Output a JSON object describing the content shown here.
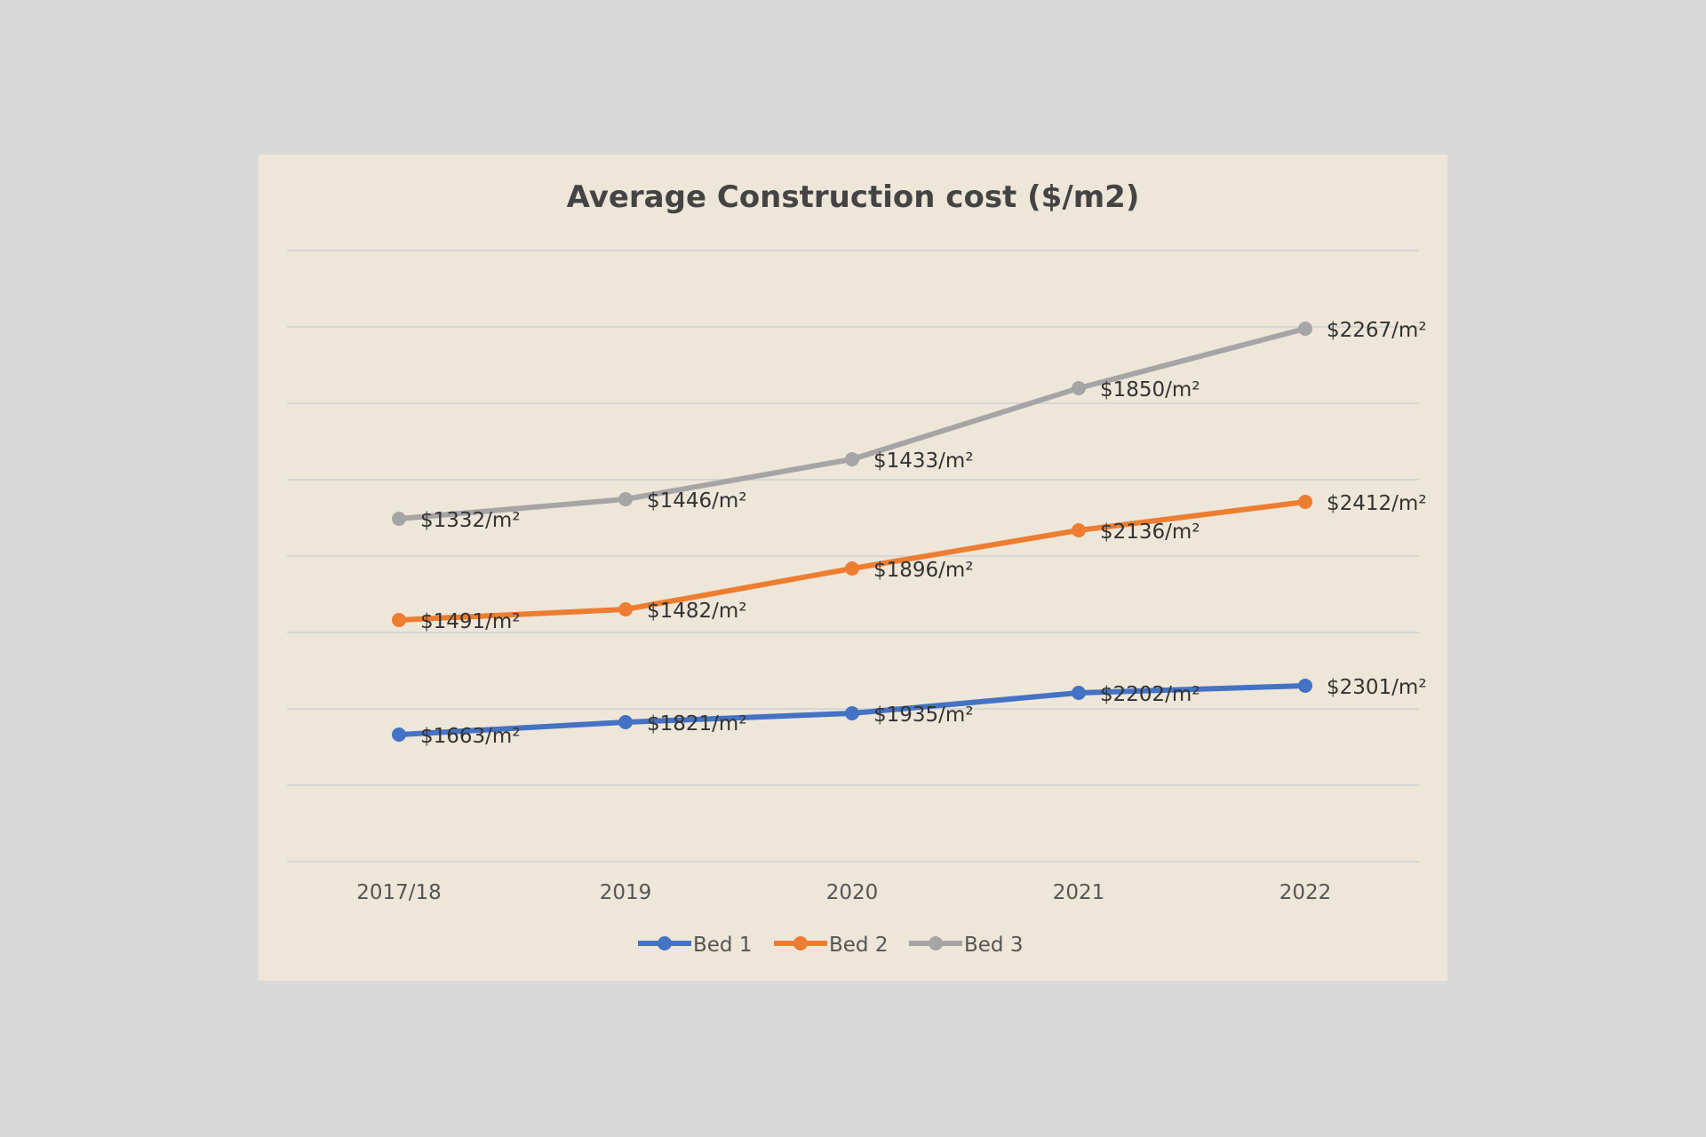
{
  "chart_data": {
    "type": "line",
    "title": "Average Construction cost ($/m2)",
    "categories": [
      "2017/18",
      "2019",
      "2020",
      "2021",
      "2022"
    ],
    "series": [
      {
        "name": "Bed 1",
        "color": "#4472c4",
        "values": [
          1663,
          1821,
          1935,
          2202,
          2301
        ],
        "labels": [
          "$1663/m²",
          "$1821/m²",
          "$1935/m²",
          "$2202/m²",
          "$2301/m²"
        ]
      },
      {
        "name": "Bed 2",
        "color": "#ed7d31",
        "values": [
          1491,
          1482,
          1896,
          2136,
          2412
        ],
        "labels": [
          "$1491/m²",
          "$1482/m²",
          "$1896/m²",
          "$2136/m²",
          "$2412/m²"
        ]
      },
      {
        "name": "Bed 3",
        "color": "#a5a5a5",
        "values": [
          1332,
          1446,
          1433,
          1850,
          2267
        ],
        "labels": [
          "$1332/m²",
          "$1446/m²",
          "$1433/m²",
          "$1850/m²",
          "$2267/m²"
        ]
      }
    ],
    "legend_position": "bottom",
    "grid": true,
    "y_axis_visible": false
  }
}
